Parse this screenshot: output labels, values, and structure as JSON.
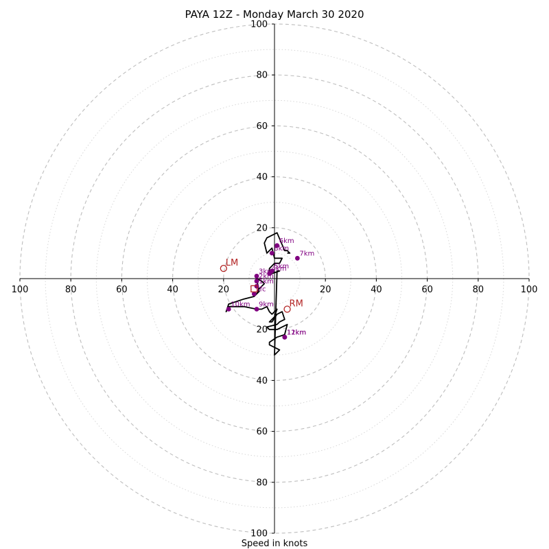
{
  "chart_data": {
    "type": "scatter",
    "title": "PAYA 12Z - Monday March 30 2020",
    "xlabel": "Speed in knots",
    "ylabel": "",
    "xlim": [
      -100,
      100
    ],
    "ylim": [
      -100,
      100
    ],
    "ring_major": [
      20,
      40,
      60,
      80,
      100
    ],
    "ring_minor": [
      10,
      30,
      50,
      70,
      90
    ],
    "x_ticks": [
      {
        "v": -100,
        "label": "100"
      },
      {
        "v": -80,
        "label": "80"
      },
      {
        "v": -60,
        "label": "60"
      },
      {
        "v": -40,
        "label": "40"
      },
      {
        "v": -20,
        "label": "20"
      },
      {
        "v": 20,
        "label": "20"
      },
      {
        "v": 40,
        "label": "40"
      },
      {
        "v": 60,
        "label": "60"
      },
      {
        "v": 80,
        "label": "80"
      },
      {
        "v": 100,
        "label": "100"
      }
    ],
    "y_ticks": [
      {
        "v": 100,
        "label": "100"
      },
      {
        "v": 80,
        "label": "80"
      },
      {
        "v": 60,
        "label": "60"
      },
      {
        "v": 40,
        "label": "40"
      },
      {
        "v": 20,
        "label": "20"
      },
      {
        "v": -20,
        "label": "20"
      },
      {
        "v": -40,
        "label": "40"
      },
      {
        "v": -60,
        "label": "60"
      },
      {
        "v": -80,
        "label": "80"
      },
      {
        "v": -100,
        "label": "100"
      }
    ],
    "hodograph": {
      "x": [
        -7,
        -6,
        -5,
        -4,
        -5,
        -7,
        -7,
        -6,
        -8,
        -12,
        -18,
        -19,
        -18,
        -12,
        -7,
        -5,
        -3,
        -2,
        -1,
        1,
        0,
        -2,
        -1,
        1,
        3,
        4,
        2,
        1,
        -3,
        -2,
        1,
        5,
        4,
        1,
        -2,
        -2,
        0,
        2,
        1,
        0,
        1,
        2,
        -1,
        -2,
        -2,
        0,
        2,
        3,
        0,
        -1,
        -3,
        -4,
        -3,
        1,
        4,
        5,
        6,
        5,
        5
      ],
      "y": [
        -6,
        -4,
        -3,
        -2,
        -1,
        0,
        0,
        -5,
        -7,
        -8,
        -10,
        -13,
        -11,
        -11,
        -12,
        -12,
        -11,
        -13,
        -14,
        -12,
        -15,
        -17,
        -17,
        -14,
        -13,
        -16,
        -17,
        -18,
        -19,
        -20,
        -20,
        -18,
        -22,
        -23,
        -25,
        -26,
        -27,
        -28,
        -29,
        -30,
        3,
        3,
        2,
        3,
        4,
        6,
        6,
        8,
        8,
        12,
        10,
        14,
        16,
        18,
        11,
        11,
        10,
        10,
        10
      ]
    },
    "height_markers": [
      {
        "label": "sfc",
        "x": -8,
        "y": -6
      },
      {
        "label": "1km",
        "x": -7,
        "y": -3
      },
      {
        "label": "2km",
        "x": -7,
        "y": -1
      },
      {
        "label": "3km",
        "x": -7,
        "y": 1
      },
      {
        "label": "4km",
        "x": -2,
        "y": 2
      },
      {
        "label": "5km",
        "x": -1,
        "y": 3
      },
      {
        "label": "6km",
        "x": 1,
        "y": 13
      },
      {
        "label": "7km",
        "x": 9,
        "y": 8
      },
      {
        "label": "8km",
        "x": -1,
        "y": 10
      },
      {
        "label": "9km",
        "x": -7,
        "y": -12
      },
      {
        "label": "10km",
        "x": -18,
        "y": -12
      },
      {
        "label": "11km",
        "x": 4,
        "y": -23
      },
      {
        "label": "12km",
        "x": 4,
        "y": -23
      }
    ],
    "storm_motion": [
      {
        "label": "LM",
        "x": -20,
        "y": 4
      },
      {
        "label": "RM",
        "x": 5,
        "y": -12
      }
    ],
    "mean_wind": {
      "x": -8,
      "y": -4
    }
  }
}
